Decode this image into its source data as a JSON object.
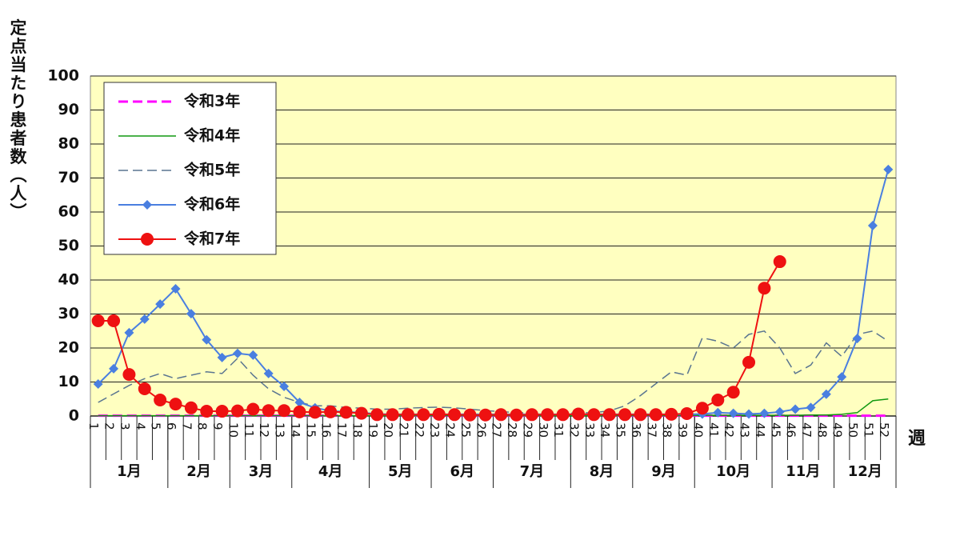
{
  "chart_data": {
    "type": "line",
    "y_label": "定点当たり患者数（人）",
    "x_label": "週",
    "categories": [
      "1",
      "2",
      "3",
      "4",
      "5",
      "6",
      "7",
      "8",
      "9",
      "10",
      "11",
      "12",
      "13",
      "14",
      "15",
      "16",
      "17",
      "18",
      "19",
      "20",
      "21",
      "22",
      "23",
      "24",
      "25",
      "26",
      "27",
      "28",
      "29",
      "30",
      "31",
      "32",
      "33",
      "34",
      "35",
      "36",
      "37",
      "38",
      "39",
      "40",
      "41",
      "42",
      "43",
      "44",
      "45",
      "46",
      "47",
      "48",
      "49",
      "50",
      "51",
      "52"
    ],
    "months": [
      "1月",
      "2月",
      "3月",
      "4月",
      "5月",
      "6月",
      "7月",
      "8月",
      "9月",
      "10月",
      "11月",
      "12月"
    ],
    "ylim": [
      0,
      100
    ],
    "yticks": [
      0,
      10,
      20,
      30,
      40,
      50,
      60,
      70,
      80,
      90,
      100
    ],
    "grid": true,
    "legend": "upper left",
    "background": "#ffffc0",
    "series": [
      {
        "name": "令和3年",
        "color": "#ff00ff",
        "dash": true,
        "width": 3,
        "marker": "none",
        "values": [
          0.1,
          0.1,
          0.1,
          0.1,
          0.1,
          0.1,
          0.1,
          0.1,
          0.1,
          0.1,
          0.1,
          0.1,
          0.1,
          0.1,
          0.1,
          0.1,
          0.1,
          0.1,
          0.1,
          0.1,
          0.1,
          0.1,
          0.1,
          0.1,
          0.1,
          0.1,
          0.1,
          0.1,
          0.1,
          0.1,
          0.1,
          0.1,
          0.1,
          0.1,
          0.1,
          0.1,
          0.1,
          0.1,
          0.1,
          0.1,
          0.1,
          0.1,
          0.1,
          0.1,
          0.1,
          0.1,
          0.1,
          0.1,
          0.1,
          0.1,
          0.1,
          0.1
        ]
      },
      {
        "name": "令和4年",
        "color": "#119911",
        "dash": false,
        "width": 1.5,
        "marker": "none",
        "values": [
          0.1,
          0.1,
          0.1,
          0.1,
          0.1,
          0.1,
          0.1,
          0.1,
          0.1,
          0.1,
          0.1,
          0.1,
          0.1,
          0.1,
          0.1,
          0.1,
          0.1,
          0.1,
          0.1,
          0.1,
          0.1,
          0.1,
          0.1,
          0.1,
          0.1,
          0.1,
          0.1,
          0.1,
          0.1,
          0.1,
          0.1,
          0.1,
          0.1,
          0.1,
          0.1,
          0.1,
          0.1,
          0.1,
          0.1,
          0.2,
          0.2,
          0.2,
          0.2,
          0.2,
          0.2,
          0.2,
          0.3,
          0.3,
          0.5,
          1,
          4.5,
          5
        ]
      },
      {
        "name": "令和5年",
        "color": "#5a7590",
        "dash": true,
        "width": 1.5,
        "marker": "none",
        "values": [
          4,
          6.5,
          9,
          11,
          12.5,
          11,
          12,
          13,
          12.5,
          17,
          12,
          8,
          5.5,
          4,
          3,
          3,
          2.5,
          2.3,
          2,
          2,
          2.3,
          2.5,
          2.6,
          2.4,
          2,
          1.6,
          1.3,
          1,
          0.9,
          0.8,
          0.8,
          0.9,
          1,
          1.5,
          3,
          6,
          9.5,
          13,
          12,
          23,
          22,
          20,
          24,
          25,
          20,
          12.5,
          15,
          21.5,
          17.5,
          24,
          25,
          22
        ]
      },
      {
        "name": "令和6年",
        "color": "#4a7fe0",
        "dash": false,
        "width": 2,
        "marker": "diamond",
        "values": [
          9.4,
          13.9,
          24.5,
          28.5,
          32.9,
          37.4,
          30.1,
          22.4,
          17.2,
          18.4,
          17.9,
          12.5,
          8.7,
          4,
          2.4,
          1.5,
          1.2,
          1,
          0.6,
          0.5,
          0.5,
          0.5,
          0.5,
          0.5,
          0.5,
          0.5,
          0.5,
          0.5,
          0.5,
          0.5,
          0.5,
          0.5,
          0.5,
          0.5,
          0.5,
          0.5,
          0.5,
          0.5,
          0.5,
          0.6,
          1,
          0.8,
          0.6,
          0.8,
          1.2,
          2,
          2.5,
          6.4,
          11.5,
          22.8,
          56,
          72.5
        ]
      },
      {
        "name": "令和7年",
        "color": "#ee1111",
        "dash": false,
        "width": 2,
        "marker": "circle",
        "values": [
          28,
          28,
          12.2,
          8,
          4.7,
          3.5,
          2.4,
          1.4,
          1.4,
          1.5,
          2,
          1.6,
          1.6,
          1.2,
          1.1,
          1.2,
          1.1,
          0.8,
          0.4,
          0.4,
          0.4,
          0.4,
          0.5,
          0.4,
          0.3,
          0.3,
          0.4,
          0.3,
          0.4,
          0.4,
          0.4,
          0.6,
          0.4,
          0.4,
          0.4,
          0.4,
          0.4,
          0.5,
          0.7,
          2.3,
          4.7,
          7,
          15.8,
          37.6,
          45.4,
          null,
          null,
          null,
          null,
          null,
          null,
          null
        ]
      }
    ]
  }
}
